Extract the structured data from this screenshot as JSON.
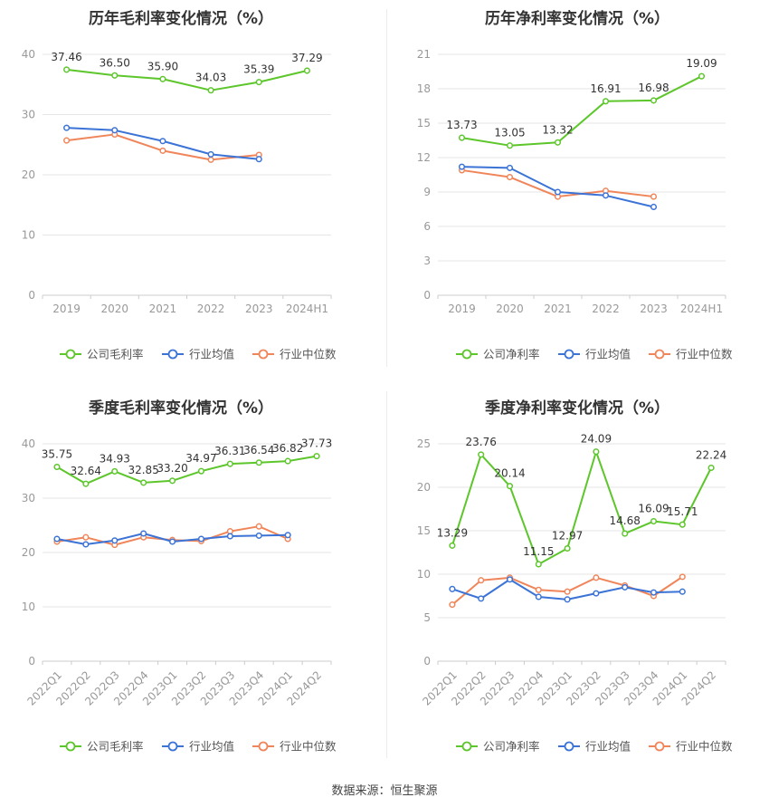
{
  "colors": {
    "company": "#5cc62b",
    "avg": "#3b73d6",
    "median": "#f0855a",
    "grid": "#e6e6e6",
    "axis": "#999999"
  },
  "source": "数据来源：恒生聚源",
  "chart_data": [
    {
      "type": "line",
      "title": "历年毛利率变化情况（%）",
      "categories": [
        "2019",
        "2020",
        "2021",
        "2022",
        "2023",
        "2024H1"
      ],
      "ylim": [
        0,
        40
      ],
      "yticks": [
        0,
        10,
        20,
        30,
        40
      ],
      "series": [
        {
          "name": "公司毛利率",
          "color_key": "company",
          "values": [
            37.46,
            36.5,
            35.9,
            34.03,
            35.39,
            37.29
          ],
          "labels": [
            "37.46",
            "36.50",
            "35.90",
            "34.03",
            "35.39",
            "37.29"
          ]
        },
        {
          "name": "行业均值",
          "color_key": "avg",
          "values": [
            27.8,
            27.4,
            25.6,
            23.4,
            22.6,
            null
          ]
        },
        {
          "name": "行业中位数",
          "color_key": "median",
          "values": [
            25.7,
            26.7,
            24.0,
            22.5,
            23.3,
            null
          ]
        }
      ]
    },
    {
      "type": "line",
      "title": "历年净利率变化情况（%）",
      "categories": [
        "2019",
        "2020",
        "2021",
        "2022",
        "2023",
        "2024H1"
      ],
      "ylim": [
        0,
        21
      ],
      "yticks": [
        0,
        3,
        6,
        9,
        12,
        15,
        18,
        21
      ],
      "series": [
        {
          "name": "公司净利率",
          "color_key": "company",
          "values": [
            13.73,
            13.05,
            13.32,
            16.91,
            16.98,
            19.09
          ],
          "labels": [
            "13.73",
            "13.05",
            "13.32",
            "16.91",
            "16.98",
            "19.09"
          ]
        },
        {
          "name": "行业均值",
          "color_key": "avg",
          "values": [
            11.2,
            11.1,
            9.0,
            8.7,
            7.7,
            null
          ]
        },
        {
          "name": "行业中位数",
          "color_key": "median",
          "values": [
            10.9,
            10.3,
            8.6,
            9.1,
            8.6,
            null
          ]
        }
      ]
    },
    {
      "type": "line",
      "title": "季度毛利率变化情况（%）",
      "categories": [
        "2022Q1",
        "2022Q2",
        "2022Q3",
        "2022Q4",
        "2023Q1",
        "2023Q2",
        "2023Q3",
        "2023Q4",
        "2024Q1",
        "2024Q2"
      ],
      "ylim": [
        0,
        40
      ],
      "yticks": [
        0,
        10,
        20,
        30,
        40
      ],
      "series": [
        {
          "name": "公司毛利率",
          "color_key": "company",
          "values": [
            35.75,
            32.64,
            34.93,
            32.85,
            33.2,
            34.97,
            36.31,
            36.54,
            36.82,
            37.73
          ],
          "labels": [
            "35.75",
            "32.64",
            "34.93",
            "32.85",
            "33.20",
            "34.97",
            "36.31",
            "36.54",
            "36.82",
            "37.73"
          ]
        },
        {
          "name": "行业均值",
          "color_key": "avg",
          "values": [
            22.5,
            21.5,
            22.2,
            23.5,
            22.0,
            22.5,
            23.0,
            23.1,
            23.2,
            null
          ]
        },
        {
          "name": "行业中位数",
          "color_key": "median",
          "values": [
            22.0,
            22.8,
            21.4,
            22.8,
            22.3,
            22.1,
            23.9,
            24.8,
            22.5,
            null
          ]
        }
      ]
    },
    {
      "type": "line",
      "title": "季度净利率变化情况（%）",
      "categories": [
        "2022Q1",
        "2022Q2",
        "2022Q3",
        "2022Q4",
        "2023Q1",
        "2023Q2",
        "2023Q3",
        "2023Q4",
        "2024Q1",
        "2024Q2"
      ],
      "ylim": [
        0,
        25
      ],
      "yticks": [
        0,
        5,
        10,
        15,
        20,
        25
      ],
      "series": [
        {
          "name": "公司净利率",
          "color_key": "company",
          "values": [
            13.29,
            23.76,
            20.14,
            11.15,
            12.97,
            24.09,
            14.68,
            16.09,
            15.71,
            22.24
          ],
          "labels": [
            "13.29",
            "23.76",
            "20.14",
            "11.15",
            "12.97",
            "24.09",
            "14.68",
            "16.09",
            "15.71",
            "22.24"
          ]
        },
        {
          "name": "行业均值",
          "color_key": "avg",
          "values": [
            8.3,
            7.2,
            9.4,
            7.4,
            7.1,
            7.8,
            8.5,
            7.9,
            8.0,
            null
          ]
        },
        {
          "name": "行业中位数",
          "color_key": "median",
          "values": [
            6.5,
            9.3,
            9.6,
            8.2,
            8.0,
            9.6,
            8.7,
            7.5,
            9.7,
            null
          ]
        }
      ]
    }
  ]
}
